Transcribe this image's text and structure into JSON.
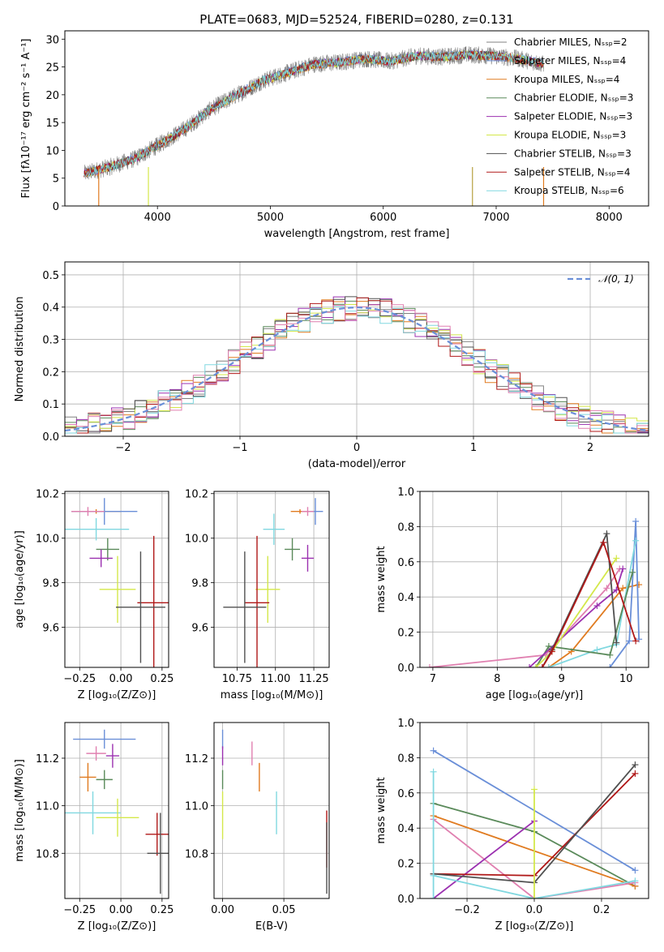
{
  "figure": {
    "title": "PLATE=0683, MJD=52524, FIBERID=0280, z=0.131"
  },
  "chart_data": [
    {
      "id": "spectrum",
      "type": "line",
      "xlabel": "wavelength [Angstrom, rest frame]",
      "ylabel": "Flux [fλ10⁻¹⁷ erg cm⁻² s⁻¹ A⁻¹]",
      "xlim": [
        3180,
        8350
      ],
      "ylim": [
        0,
        31.5
      ],
      "xticks": [
        4000,
        5000,
        6000,
        7000,
        8000
      ],
      "yticks": [
        0,
        5,
        10,
        15,
        20,
        25,
        30
      ],
      "x_range_data": [
        3350,
        7420
      ],
      "data_color": "#808080",
      "series": [
        {
          "name": "Chabrier MILES, Nₛₛₚ=2",
          "color": "#808080",
          "values": [
            5.8,
            7.0,
            8.5,
            11.2,
            14.0,
            17.5,
            20.0,
            22.5,
            24.0,
            25.5,
            25.8,
            26.5,
            26.0,
            27.0,
            26.8,
            27.2,
            27.0,
            26.5,
            25.5
          ]
        },
        {
          "name": "Salpeter MILES, Nₛₛₚ=4",
          "color": "#6a8fd8",
          "values": [
            5.9,
            7.1,
            8.6,
            11.3,
            14.1,
            17.6,
            20.1,
            22.6,
            24.1,
            25.6,
            25.9,
            26.6,
            26.1,
            27.1,
            26.9,
            27.3,
            27.1,
            26.6,
            25.6
          ]
        },
        {
          "name": "Kroupa MILES, Nₛₛₚ=4",
          "color": "#e07b20",
          "values": [
            5.7,
            6.9,
            8.4,
            11.1,
            13.9,
            17.4,
            19.9,
            22.4,
            23.9,
            25.4,
            25.7,
            26.4,
            25.9,
            26.9,
            26.7,
            27.1,
            26.9,
            26.4,
            25.4
          ]
        },
        {
          "name": "Chabrier ELODIE, Nₛₛₚ=3",
          "color": "#5a8a5a",
          "values": [
            5.8,
            7.0,
            8.5,
            11.2,
            14.0,
            17.5,
            20.0,
            22.5,
            24.0,
            25.5,
            25.8,
            26.5,
            26.0,
            27.0,
            26.8,
            27.2,
            27.0,
            26.5,
            25.5
          ]
        },
        {
          "name": "Salpeter ELODIE, Nₛₛₚ=3",
          "color": "#9b30b0",
          "values": [
            5.8,
            7.0,
            8.5,
            11.2,
            14.0,
            17.5,
            20.0,
            22.5,
            24.0,
            25.5,
            25.8,
            26.5,
            26.0,
            27.0,
            26.8,
            27.2,
            27.0,
            26.5,
            25.5
          ]
        },
        {
          "name": "Kroupa ELODIE, Nₛₛₚ=3",
          "color": "#d4e84a",
          "values": [
            5.8,
            7.0,
            8.5,
            11.2,
            14.0,
            17.5,
            20.0,
            22.5,
            24.0,
            25.5,
            25.8,
            26.5,
            26.0,
            27.0,
            26.8,
            27.2,
            27.0,
            26.5,
            25.5
          ]
        },
        {
          "name": "Chabrier STELIB, Nₛₛₚ=3",
          "color": "#505050",
          "values": [
            5.8,
            7.0,
            8.5,
            11.2,
            14.0,
            17.5,
            20.0,
            22.5,
            24.0,
            25.5,
            25.8,
            26.5,
            26.0,
            27.0,
            26.8,
            27.2,
            27.0,
            26.5,
            25.5
          ]
        },
        {
          "name": "Salpeter STELIB, Nₛₛₚ=4",
          "color": "#b01818",
          "values": [
            5.8,
            7.0,
            8.5,
            11.2,
            14.0,
            17.5,
            20.0,
            22.5,
            24.0,
            25.5,
            25.8,
            26.5,
            26.0,
            27.0,
            26.8,
            27.2,
            27.0,
            26.5,
            25.5
          ]
        },
        {
          "name": "Kroupa STELIB, Nₛₛₚ=6",
          "color": "#80d8e0",
          "values": [
            5.8,
            7.0,
            8.5,
            11.2,
            14.0,
            17.5,
            20.0,
            22.5,
            24.0,
            25.5,
            25.8,
            26.5,
            26.0,
            27.0,
            26.8,
            27.2,
            27.0,
            26.5,
            25.5
          ]
        }
      ],
      "drops": [
        {
          "x": 3480,
          "color": "#e07b20"
        },
        {
          "x": 3920,
          "color": "#d4e84a"
        },
        {
          "x": 6790,
          "color": "#b5a040"
        },
        {
          "x": 7420,
          "color": "#e07b20"
        }
      ]
    },
    {
      "id": "residuals",
      "type": "line",
      "xlabel": "(data-model)/error",
      "ylabel": "Normed distribution",
      "xlim": [
        -2.5,
        2.5
      ],
      "ylim": [
        0,
        0.54
      ],
      "xticks": [
        -2,
        -1,
        0,
        1,
        2
      ],
      "xticklabels": [
        "−2",
        "−1",
        "0",
        "1",
        "2"
      ],
      "yticks": [
        0.0,
        0.1,
        0.2,
        0.3,
        0.4,
        0.5
      ],
      "yticklabels": [
        "0.0",
        "0.1",
        "0.2",
        "0.3",
        "0.4",
        "0.5"
      ],
      "gaussian": {
        "name": "𝒩(0, 1)",
        "color": "#6a8fd8",
        "mean": 0,
        "sigma": 1
      },
      "bin_edges_step": 0.1,
      "legend": "top-right"
    },
    {
      "id": "age_vs_Z",
      "type": "scatter",
      "xlabel": "Z [log₁₀(Z/Z⊙)]",
      "ylabel": "age  [log₁₀(age/yr)]",
      "xlim": [
        -0.34,
        0.29
      ],
      "ylim": [
        9.42,
        10.21
      ],
      "xticks": [
        -0.25,
        0.0,
        0.25
      ],
      "xticklabels": [
        "−0.25",
        "0.00",
        "0.25"
      ],
      "yticks": [
        9.6,
        9.8,
        10.0,
        10.2
      ],
      "yticklabels": [
        "9.6",
        "9.8",
        "10.0",
        "10.2"
      ],
      "points": [
        {
          "x": -0.15,
          "y": 10.12,
          "xerr": 0.15,
          "yerr": 0.01,
          "color": "#e07b20"
        },
        {
          "x": -0.1,
          "y": 10.12,
          "xerr": 0.2,
          "yerr": 0.06,
          "color": "#6a8fd8"
        },
        {
          "x": -0.2,
          "y": 10.12,
          "xerr": 0.1,
          "yerr": 0.02,
          "color": "#e080b0"
        },
        {
          "x": -0.15,
          "y": 10.04,
          "xerr": 0.2,
          "yerr": 0.05,
          "color": "#80d8e0"
        },
        {
          "x": -0.08,
          "y": 9.95,
          "xerr": 0.07,
          "yerr": 0.05,
          "color": "#5a8a5a"
        },
        {
          "x": -0.12,
          "y": 9.91,
          "xerr": 0.07,
          "yerr": 0.04,
          "color": "#9b30b0"
        },
        {
          "x": -0.02,
          "y": 9.77,
          "xerr": 0.11,
          "yerr": 0.15,
          "color": "#d4e84a"
        },
        {
          "x": 0.2,
          "y": 9.71,
          "xerr": 0.1,
          "yerr": 0.3,
          "color": "#b01818"
        },
        {
          "x": 0.12,
          "y": 9.69,
          "xerr": 0.15,
          "yerr": 0.25,
          "color": "#505050"
        }
      ]
    },
    {
      "id": "age_vs_mass",
      "type": "scatter",
      "xlabel": "mass [log₁₀(M/M⊙)]",
      "ylabel": "",
      "xlim": [
        10.6,
        11.35
      ],
      "ylim": [
        9.42,
        10.21
      ],
      "xticks": [
        10.75,
        11.0,
        11.25
      ],
      "xticklabels": [
        "10.75",
        "11.00",
        "11.25"
      ],
      "yticks": [
        9.6,
        9.8,
        10.0,
        10.2
      ],
      "yticklabels": [
        "9.6",
        "9.8",
        "10.0",
        "10.2"
      ],
      "points": [
        {
          "x": 11.16,
          "y": 10.12,
          "xerr": 0.06,
          "yerr": 0.01,
          "color": "#e07b20"
        },
        {
          "x": 11.26,
          "y": 10.12,
          "xerr": 0.05,
          "yerr": 0.06,
          "color": "#6a8fd8"
        },
        {
          "x": 11.21,
          "y": 10.12,
          "xerr": 0.04,
          "yerr": 0.02,
          "color": "#e080b0"
        },
        {
          "x": 10.99,
          "y": 10.04,
          "xerr": 0.07,
          "yerr": 0.07,
          "color": "#80d8e0"
        },
        {
          "x": 11.11,
          "y": 9.95,
          "xerr": 0.05,
          "yerr": 0.05,
          "color": "#5a8a5a"
        },
        {
          "x": 11.21,
          "y": 9.91,
          "xerr": 0.04,
          "yerr": 0.06,
          "color": "#9b30b0"
        },
        {
          "x": 10.95,
          "y": 9.77,
          "xerr": 0.08,
          "yerr": 0.15,
          "color": "#d4e84a"
        },
        {
          "x": 10.88,
          "y": 9.71,
          "xerr": 0.08,
          "yerr": 0.3,
          "color": "#b01818"
        },
        {
          "x": 10.8,
          "y": 9.69,
          "xerr": 0.14,
          "yerr": 0.25,
          "color": "#505050"
        }
      ]
    },
    {
      "id": "weight_vs_age",
      "type": "line",
      "xlabel": "age  [log₁₀(age/yr)]",
      "ylabel": "mass weight",
      "xlim": [
        6.8,
        10.35
      ],
      "ylim": [
        0,
        1.0
      ],
      "xticks": [
        7,
        8,
        9,
        10
      ],
      "xticklabels": [
        "7",
        "8",
        "9",
        "10"
      ],
      "yticks": [
        0.0,
        0.2,
        0.4,
        0.6,
        0.8,
        1.0
      ],
      "yticklabels": [
        "0.0",
        "0.2",
        "0.4",
        "0.6",
        "0.8",
        "1.0"
      ],
      "series": [
        {
          "color": "#e080b0",
          "x": [
            6.95,
            8.75,
            9.7,
            9.9
          ],
          "y": [
            0.0,
            0.07,
            0.45,
            0.56
          ]
        },
        {
          "color": "#e07b20",
          "x": [
            8.8,
            9.15,
            9.95,
            10.2
          ],
          "y": [
            0.0,
            0.09,
            0.45,
            0.47
          ]
        },
        {
          "color": "#6a8fd8",
          "x": [
            9.75,
            10.05,
            10.15,
            10.2
          ],
          "y": [
            0.0,
            0.15,
            0.83,
            0.16
          ]
        },
        {
          "color": "#80d8e0",
          "x": [
            8.8,
            9.55,
            9.85,
            10.15
          ],
          "y": [
            0.0,
            0.1,
            0.13,
            0.72
          ]
        },
        {
          "color": "#5a8a5a",
          "x": [
            8.6,
            8.8,
            9.75,
            10.1
          ],
          "y": [
            0.0,
            0.12,
            0.07,
            0.54
          ]
        },
        {
          "color": "#9b30b0",
          "x": [
            8.5,
            9.55,
            9.85,
            9.95
          ],
          "y": [
            0.0,
            0.35,
            0.44,
            0.56
          ]
        },
        {
          "color": "#d4e84a",
          "x": [
            8.6,
            8.85,
            9.85
          ],
          "y": [
            0.0,
            0.09,
            0.62
          ]
        },
        {
          "color": "#505050",
          "x": [
            8.7,
            8.85,
            9.7,
            9.85
          ],
          "y": [
            0.0,
            0.1,
            0.76,
            0.14
          ]
        },
        {
          "color": "#b01818",
          "x": [
            8.7,
            8.85,
            9.65,
            10.15
          ],
          "y": [
            0.0,
            0.09,
            0.71,
            0.15
          ]
        }
      ]
    },
    {
      "id": "mass_vs_Z",
      "type": "scatter",
      "xlabel": "Z [log₁₀(Z/Z⊙)]",
      "ylabel": "mass [log₁₀(M/M⊙)]",
      "xlim": [
        -0.34,
        0.29
      ],
      "ylim": [
        10.61,
        11.35
      ],
      "xticks": [
        -0.25,
        0.0,
        0.25
      ],
      "xticklabels": [
        "−0.25",
        "0.00",
        "0.25"
      ],
      "yticks": [
        10.8,
        11.0,
        11.2
      ],
      "yticklabels": [
        "10.8",
        "11.0",
        "11.2"
      ],
      "points": [
        {
          "x": -0.1,
          "y": 11.28,
          "xerr": 0.19,
          "yerr": 0.04,
          "color": "#6a8fd8"
        },
        {
          "x": -0.15,
          "y": 11.22,
          "xerr": 0.06,
          "yerr": 0.03,
          "color": "#e080b0"
        },
        {
          "x": -0.05,
          "y": 11.21,
          "xerr": 0.04,
          "yerr": 0.05,
          "color": "#9b30b0"
        },
        {
          "x": -0.2,
          "y": 11.12,
          "xerr": 0.05,
          "yerr": 0.06,
          "color": "#e07b20"
        },
        {
          "x": -0.1,
          "y": 11.11,
          "xerr": 0.05,
          "yerr": 0.04,
          "color": "#5a8a5a"
        },
        {
          "x": -0.17,
          "y": 10.97,
          "xerr": 0.17,
          "yerr": 0.09,
          "color": "#80d8e0"
        },
        {
          "x": -0.02,
          "y": 10.95,
          "xerr": 0.13,
          "yerr": 0.08,
          "color": "#d4e84a"
        },
        {
          "x": 0.22,
          "y": 10.88,
          "xerr": 0.07,
          "yerr": 0.09,
          "color": "#b01818"
        },
        {
          "x": 0.24,
          "y": 10.8,
          "xerr": 0.08,
          "yerr": 0.17,
          "color": "#505050"
        }
      ]
    },
    {
      "id": "mass_vs_EBV",
      "type": "scatter",
      "xlabel": "E(B-V)",
      "ylabel": "",
      "xlim": [
        -0.007,
        0.087
      ],
      "ylim": [
        10.61,
        11.35
      ],
      "xticks": [
        0.0,
        0.05
      ],
      "xticklabels": [
        "0.00",
        "0.05"
      ],
      "yticks": [
        10.8,
        11.0,
        11.2
      ],
      "yticklabels": [
        "10.8",
        "11.0",
        "11.2"
      ],
      "points": [
        {
          "x": 0.0,
          "y": 11.28,
          "xerr": 0.0,
          "yerr": 0.04,
          "color": "#6a8fd8"
        },
        {
          "x": 0.0,
          "y": 11.21,
          "xerr": 0.0,
          "yerr": 0.04,
          "color": "#9b30b0"
        },
        {
          "x": 0.0,
          "y": 11.11,
          "xerr": 0.0,
          "yerr": 0.04,
          "color": "#5a8a5a"
        },
        {
          "x": 0.0,
          "y": 10.96,
          "xerr": 0.0,
          "yerr": 0.1,
          "color": "#d4e84a"
        },
        {
          "x": 0.024,
          "y": 11.22,
          "xerr": 0.0,
          "yerr": 0.05,
          "color": "#e080b0"
        },
        {
          "x": 0.03,
          "y": 11.12,
          "xerr": 0.0,
          "yerr": 0.06,
          "color": "#e07b20"
        },
        {
          "x": 0.044,
          "y": 10.97,
          "xerr": 0.0,
          "yerr": 0.09,
          "color": "#80d8e0"
        },
        {
          "x": 0.085,
          "y": 10.86,
          "xerr": 0.0,
          "yerr": 0.12,
          "color": "#b01818"
        },
        {
          "x": 0.085,
          "y": 10.78,
          "xerr": 0.0,
          "yerr": 0.15,
          "color": "#505050"
        }
      ]
    },
    {
      "id": "weight_vs_Z",
      "type": "line",
      "xlabel": "Z [log₁₀(Z/Z⊙)]",
      "ylabel": "mass weight",
      "xlim": [
        -0.34,
        0.34
      ],
      "ylim": [
        0,
        1.0
      ],
      "xticks": [
        -0.2,
        0.0,
        0.2
      ],
      "xticklabels": [
        "−0.2",
        "0.0",
        "0.2"
      ],
      "yticks": [
        0.0,
        0.2,
        0.4,
        0.6,
        0.8,
        1.0
      ],
      "yticklabels": [
        "0.0",
        "0.2",
        "0.4",
        "0.6",
        "0.8",
        "1.0"
      ],
      "series": [
        {
          "color": "#6a8fd8",
          "x": [
            -0.3,
            0.3
          ],
          "y": [
            0.84,
            0.16
          ]
        },
        {
          "color": "#5a8a5a",
          "x": [
            -0.3,
            0.0,
            0.3
          ],
          "y": [
            0.54,
            0.38,
            0.07
          ]
        },
        {
          "color": "#e07b20",
          "x": [
            -0.3,
            0.3
          ],
          "y": [
            0.47,
            0.07
          ]
        },
        {
          "color": "#e080b0",
          "x": [
            -0.3,
            0.0,
            0.3
          ],
          "y": [
            0.45,
            0.0,
            0.09
          ]
        },
        {
          "color": "#9b30b0",
          "x": [
            -0.3,
            0.0
          ],
          "y": [
            0.0,
            0.44
          ]
        },
        {
          "color": "#b01818",
          "x": [
            -0.3,
            0.0,
            0.3
          ],
          "y": [
            0.14,
            0.13,
            0.71
          ]
        },
        {
          "color": "#505050",
          "x": [
            -0.3,
            0.0,
            0.3
          ],
          "y": [
            0.14,
            0.09,
            0.76
          ]
        },
        {
          "color": "#80d8e0",
          "x": [
            -0.3,
            0.0,
            0.3
          ],
          "y": [
            0.13,
            0.0,
            0.1
          ]
        },
        {
          "color": "#80d8e0",
          "x": [
            -0.3,
            -0.3
          ],
          "y": [
            0.72,
            0.0
          ]
        },
        {
          "color": "#d4e84a",
          "x": [
            0.0,
            0.0
          ],
          "y": [
            0.62,
            0.0
          ]
        }
      ]
    }
  ]
}
